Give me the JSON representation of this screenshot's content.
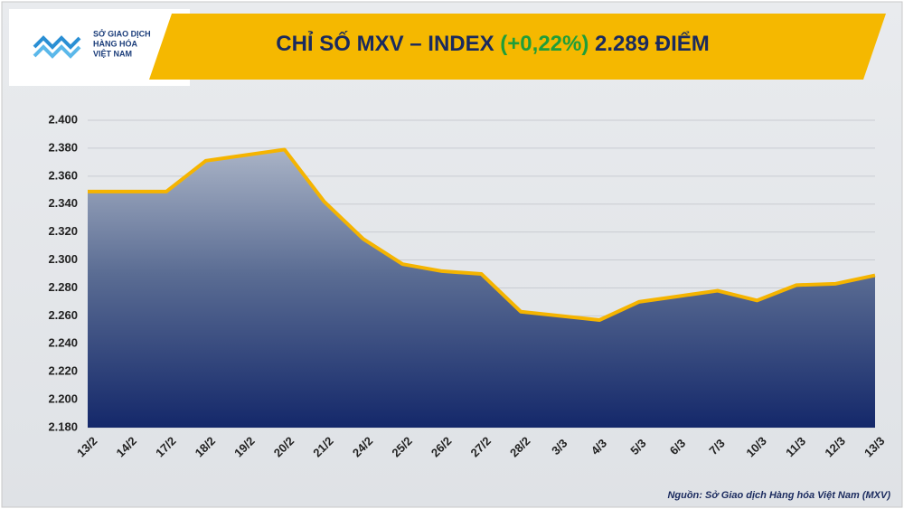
{
  "logo": {
    "lines": [
      "SỞ GIAO DỊCH",
      "HÀNG HÓA",
      "VIỆT NAM"
    ]
  },
  "chart_data": {
    "type": "area",
    "title": "CHỈ SỐ MXV – INDEX",
    "title_change": "(+0,22%)",
    "title_value": "2.289 ĐIỂM",
    "categories": [
      "13/2",
      "14/2",
      "17/2",
      "18/2",
      "19/2",
      "20/2",
      "21/2",
      "24/2",
      "25/2",
      "26/2",
      "27/2",
      "28/2",
      "3/3",
      "4/3",
      "5/3",
      "6/3",
      "7/3",
      "10/3",
      "11/3",
      "12/3",
      "13/3"
    ],
    "values": [
      2349,
      2349,
      2349,
      2371,
      2375,
      2379,
      2342,
      2315,
      2297,
      2292,
      2290,
      2263,
      2260,
      2257,
      2270,
      2274,
      2278,
      2271,
      2282,
      2283,
      2289
    ],
    "color": "#f5b400",
    "ylim": [
      2180,
      2400
    ],
    "yticks": [
      {
        "value": 2180,
        "label": "2.180"
      },
      {
        "value": 2200,
        "label": "2.200"
      },
      {
        "value": 2220,
        "label": "2.220"
      },
      {
        "value": 2240,
        "label": "2.240"
      },
      {
        "value": 2260,
        "label": "2.260"
      },
      {
        "value": 2280,
        "label": "2.280"
      },
      {
        "value": 2300,
        "label": "2.300"
      },
      {
        "value": 2320,
        "label": "2.320"
      },
      {
        "value": 2340,
        "label": "2.340"
      },
      {
        "value": 2360,
        "label": "2.360"
      },
      {
        "value": 2380,
        "label": "2.380"
      },
      {
        "value": 2400,
        "label": "2.400"
      }
    ],
    "grid": true,
    "source": "Nguồn: Sở Giao dịch Hàng hóa Việt Nam (MXV)"
  }
}
